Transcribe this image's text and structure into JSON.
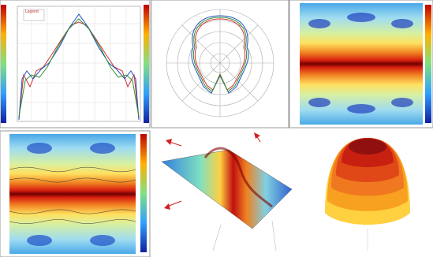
{
  "top_left_plot": {
    "legend": "Legend"
  }
}
